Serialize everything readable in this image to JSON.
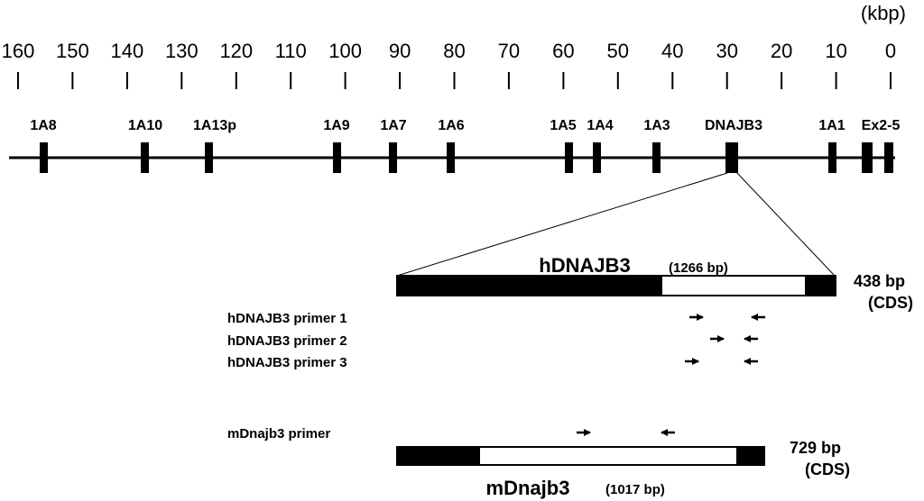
{
  "unit_label": "(kbp)",
  "scale_ticks": [
    "160",
    "150",
    "140",
    "130",
    "120",
    "110",
    "100",
    "90",
    "80",
    "70",
    "60",
    "50",
    "40",
    "30",
    "20",
    "10",
    "0"
  ],
  "exons": [
    "1A8",
    "1A10",
    "1A13p",
    "1A9",
    "1A7",
    "1A6",
    "1A5",
    "1A4",
    "1A3",
    "DNAJB3",
    "1A1",
    "Ex2-5"
  ],
  "human": {
    "name": "hDNAJB3",
    "length": "(1266 bp)",
    "cds_value": "438 bp",
    "cds_label": "(CDS)",
    "primers": [
      "hDNAJB3 primer 1",
      "hDNAJB3 primer 2",
      "hDNAJB3 primer 3"
    ]
  },
  "mouse": {
    "name": "mDnajb3",
    "length": "(1017 bp)",
    "cds_value": "729 bp",
    "cds_label": "(CDS)",
    "primer": "mDnajb3 primer"
  }
}
